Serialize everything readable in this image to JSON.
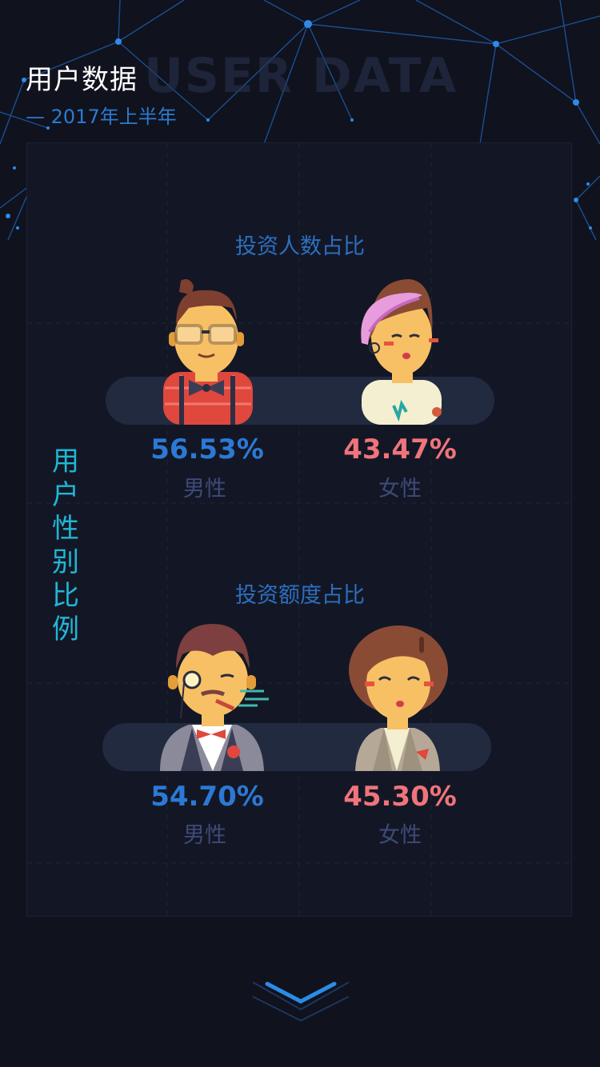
{
  "header": {
    "title": "用户数据",
    "bg_text": "USER DATA",
    "subtitle": "— 2017年上半年"
  },
  "panel": {
    "vertical_title": "用户性别比例"
  },
  "sections": [
    {
      "title": "投资人数占比",
      "male": {
        "percent": "56.53%",
        "label": "男性"
      },
      "female": {
        "percent": "43.47%",
        "label": "女性"
      }
    },
    {
      "title": "投资额度占比",
      "male": {
        "percent": "54.70%",
        "label": "男性"
      },
      "female": {
        "percent": "45.30%",
        "label": "女性"
      }
    }
  ],
  "colors": {
    "male": "#2c79d4",
    "female": "#f0747b",
    "label": "#3e4a78",
    "accent": "#21b6d6"
  },
  "icons": [
    "male-hipster-avatar-icon",
    "female-punk-avatar-icon",
    "male-gentleman-avatar-icon",
    "female-business-avatar-icon",
    "scroll-down-chevron-icon"
  ]
}
